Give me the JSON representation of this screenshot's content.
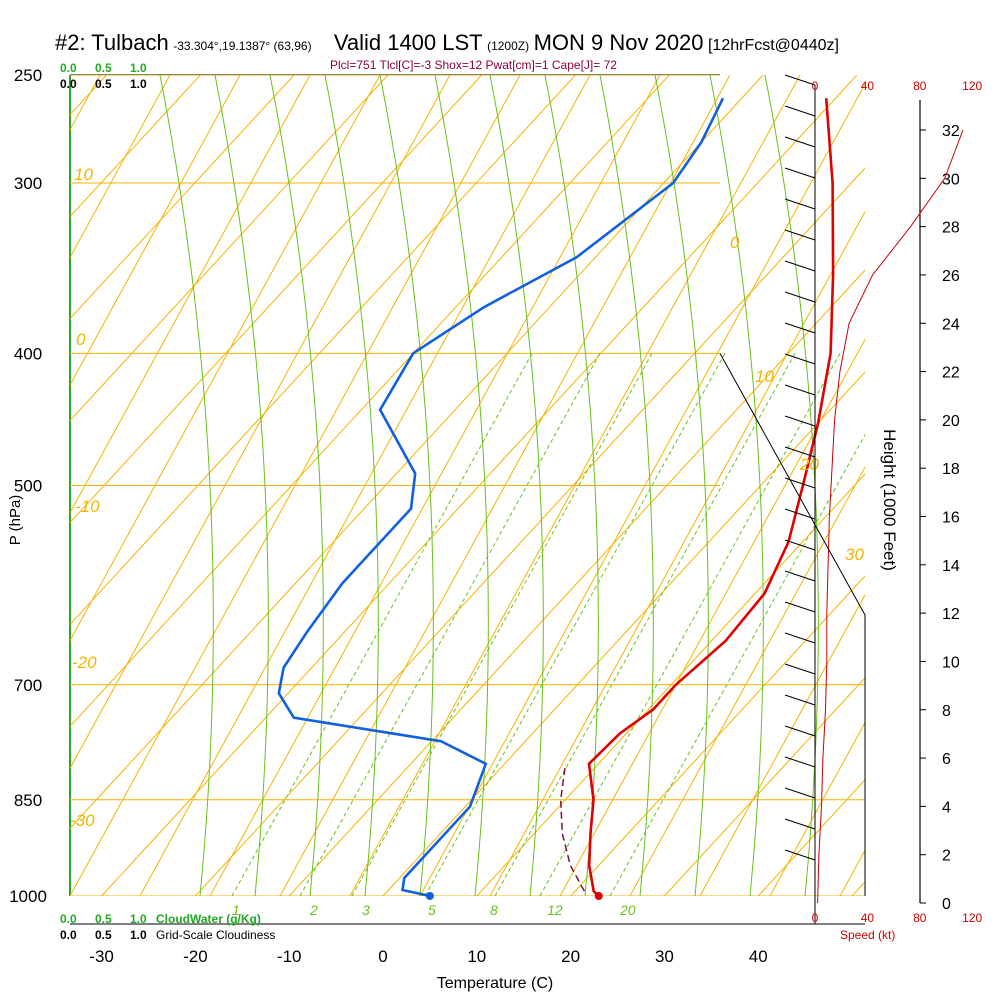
{
  "title": {
    "station": "#2: Tulbach",
    "coords": "-33.304°,19.1387° (63,96)",
    "valid": "Valid 1400 LST",
    "zulu": "(1200Z)",
    "date": "MON 9 Nov 2020",
    "forecast": "[12hrFcst@0440z]"
  },
  "params": "Plcl=751 Tlcl[C]=-3 Shox=12 Pwat[cm]=1 Cape[J]= 72",
  "colors": {
    "isotherm": "#f5b300",
    "mixing_ratio": "#66c21a",
    "temperature": "#e00000",
    "dewpoint": "#1060e0",
    "parcel": "#7a1040",
    "wind_speed": "#cc0000",
    "cloud_water": "#22aa22"
  },
  "chart_data": {
    "type": "line",
    "xlabel": "Temperature (C)",
    "ylabel": "P (hPa)",
    "x_ticks": [
      "-30",
      "-20",
      "-10",
      "0",
      "10",
      "20",
      "30",
      "40"
    ],
    "y_ticks": [
      "250",
      "300",
      "400",
      "500",
      "700",
      "850",
      "1000"
    ],
    "pressure_levels": [
      250,
      300,
      400,
      500,
      700,
      850,
      1000
    ],
    "top_scale_green": [
      "0.0",
      "0.5",
      "1.0"
    ],
    "top_scale_black": [
      "0.0",
      "0.5",
      "1.0"
    ],
    "bottom_scale_green": [
      "0.0",
      "0.5",
      "1.0"
    ],
    "bottom_scale_black": [
      "0.0",
      "0.5",
      "1.0"
    ],
    "cloud_water_label": "CloudWater (g/Kg)",
    "cloudiness_label": "Grid-Scale Cloudiness",
    "isotherm_labels": [
      "10",
      "0",
      "-10",
      "-20",
      "-30",
      "0",
      "10",
      "20",
      "30"
    ],
    "mixing_ratio_labels": [
      "1",
      "2",
      "3",
      "5",
      "8",
      "12",
      "20"
    ],
    "height_axis": {
      "label": "Height (1000 Feet)",
      "ticks": [
        "0",
        "2",
        "4",
        "6",
        "8",
        "10",
        "12",
        "14",
        "16",
        "18",
        "20",
        "22",
        "24",
        "26",
        "28",
        "30",
        "32"
      ]
    },
    "wind_speed_axis": {
      "label": "Speed (kt)",
      "ticks": [
        "0",
        "40",
        "80",
        "120"
      ]
    },
    "series": [
      {
        "name": "Temperature",
        "points": [
          [
            23,
            1000
          ],
          [
            22,
            992
          ],
          [
            19,
            950
          ],
          [
            16,
            900
          ],
          [
            13,
            850
          ],
          [
            9,
            800
          ],
          [
            9.3,
            760
          ],
          [
            10.5,
            730
          ],
          [
            10.5,
            700
          ],
          [
            11.5,
            650
          ],
          [
            11,
            600
          ],
          [
            8.5,
            550
          ],
          [
            4.5,
            500
          ],
          [
            0,
            450
          ],
          [
            -5.5,
            400
          ],
          [
            -13,
            350
          ],
          [
            -22,
            300
          ],
          [
            -31,
            260
          ]
        ]
      },
      {
        "name": "Dewpoint",
        "points": [
          [
            5,
            1000
          ],
          [
            1.5,
            990
          ],
          [
            0.5,
            970
          ],
          [
            0.5,
            900
          ],
          [
            0.5,
            860
          ],
          [
            -2,
            800
          ],
          [
            -9,
            770
          ],
          [
            -27,
            740
          ],
          [
            -31,
            710
          ],
          [
            -33,
            680
          ],
          [
            -34,
            640
          ],
          [
            -35,
            590
          ],
          [
            -35,
            550
          ],
          [
            -35,
            520
          ],
          [
            -38,
            490
          ],
          [
            -48,
            440
          ],
          [
            -50,
            400
          ],
          [
            -47,
            370
          ],
          [
            -42,
            340
          ],
          [
            -39,
            300
          ],
          [
            -40,
            280
          ],
          [
            -42,
            260
          ]
        ]
      },
      {
        "name": "Parcel",
        "points": [
          [
            21,
            992
          ],
          [
            17,
            950
          ],
          [
            13,
            900
          ],
          [
            9.5,
            850
          ],
          [
            6.5,
            800
          ]
        ]
      }
    ],
    "surface_points": {
      "temperature": 23,
      "dewpoint": 5
    },
    "height_profile_kft": [
      [
        0,
        2
      ],
      [
        2,
        3
      ],
      [
        4,
        5
      ],
      [
        6,
        6
      ],
      [
        8,
        8
      ],
      [
        10,
        9
      ],
      [
        12,
        9
      ],
      [
        14,
        10
      ],
      [
        16,
        11
      ],
      [
        18,
        13
      ],
      [
        20,
        15
      ],
      [
        22,
        19
      ],
      [
        24,
        26
      ],
      [
        26,
        44
      ],
      [
        28,
        73
      ],
      [
        30,
        99
      ],
      [
        32,
        113
      ]
    ]
  }
}
